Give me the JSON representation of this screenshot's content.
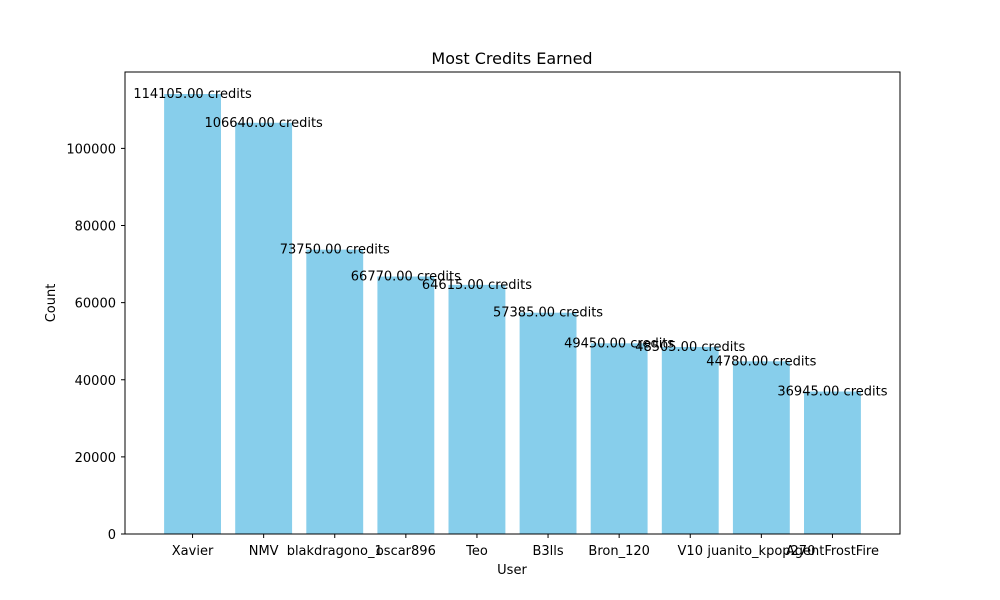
{
  "chart_data": {
    "type": "bar",
    "title": "Most Credits Earned",
    "xlabel": "User",
    "ylabel": "Count",
    "categories": [
      "Xavier",
      "NMV",
      "blakdragono_1",
      "oscar896",
      "Teo",
      "B3lls",
      "Bron_120",
      "V10",
      "juanito_kpop270",
      "AgentFrostFire"
    ],
    "values": [
      114105,
      106640,
      73750,
      66770,
      64615,
      57385,
      49450,
      48505,
      44780,
      36945
    ],
    "data_labels": [
      "114105.00 credits",
      "106640.00 credits",
      "73750.00 credits",
      "66770.00 credits",
      "64615.00 credits",
      "57385.00 credits",
      "49450.00 credits",
      "48505.00 credits",
      "44780.00 credits",
      "36945.00 credits"
    ],
    "yticks": [
      0,
      20000,
      40000,
      60000,
      80000,
      100000
    ],
    "ylim": [
      0,
      119810
    ],
    "grid": false,
    "legend": "none",
    "bar_color": "#87ceeb"
  }
}
